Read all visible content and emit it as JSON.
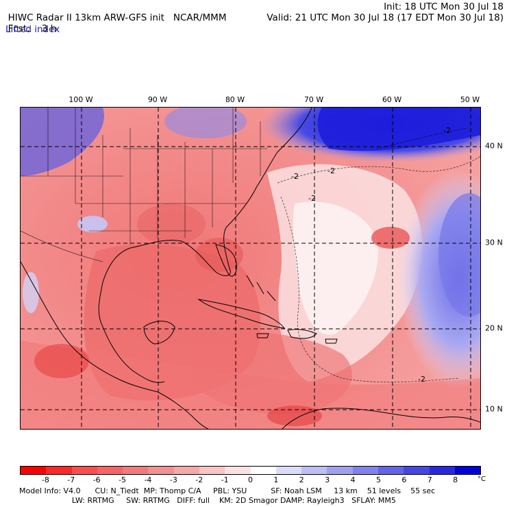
{
  "header": {
    "title": "HIWC Radar II 13km ARW-GFS init",
    "org": "NCAR/MMM",
    "init": "Init: 18 UTC Mon 30 Jul 18",
    "fcst_label": "Fcst:",
    "fcst_value": "3 h",
    "valid": "Valid: 21 UTC Mon 30 Jul 18 (17 EDT Mon 30 Jul 18)",
    "field": "Lifted index"
  },
  "map": {
    "lon_labels": [
      "100 W",
      "90 W",
      "80 W",
      "70 W",
      "60 W",
      "50 W"
    ],
    "lat_labels": [
      "40 N",
      "30 N",
      "20 N",
      "10 N"
    ],
    "contour_labels": [
      "-2",
      "-2",
      "-2",
      "-2",
      "-2"
    ],
    "colors": {
      "neg_strong": "#e81818",
      "neg_mid": "#f07878",
      "neutral": "#fbe8e8",
      "pos_strong": "#2020d8",
      "pos_mid": "#9090ee"
    }
  },
  "colorbar": {
    "labels": [
      "-8",
      "-7",
      "-6",
      "-5",
      "-4",
      "-3",
      "-2",
      "-1",
      "0",
      "1",
      "2",
      "3",
      "4",
      "5",
      "6",
      "7",
      "8"
    ],
    "unit": "°C",
    "colors": [
      "#ff0000",
      "#ff2828",
      "#ff4c4c",
      "#f86464",
      "#f27a7a",
      "#f49090",
      "#f6a8a8",
      "#f8c4c4",
      "#fbe2e2",
      "#ffffff",
      "#dcdcfa",
      "#bebef6",
      "#a0a0f2",
      "#8282ee",
      "#6464ea",
      "#4646e6",
      "#2828e2",
      "#0000dc"
    ]
  },
  "footer": {
    "line1": "Model Info: V4.0      CU: N_Tiedt  MP: Thomp C/A     PBL: YSU          SF: Noah LSM     13 km    51 levels    55 sec",
    "line2": "                      LW: RRTMG     SW: RRTMG   DIFF: full    KM: 2D Smagor DAMP: Rayleigh3   SFLAY: MM5"
  }
}
